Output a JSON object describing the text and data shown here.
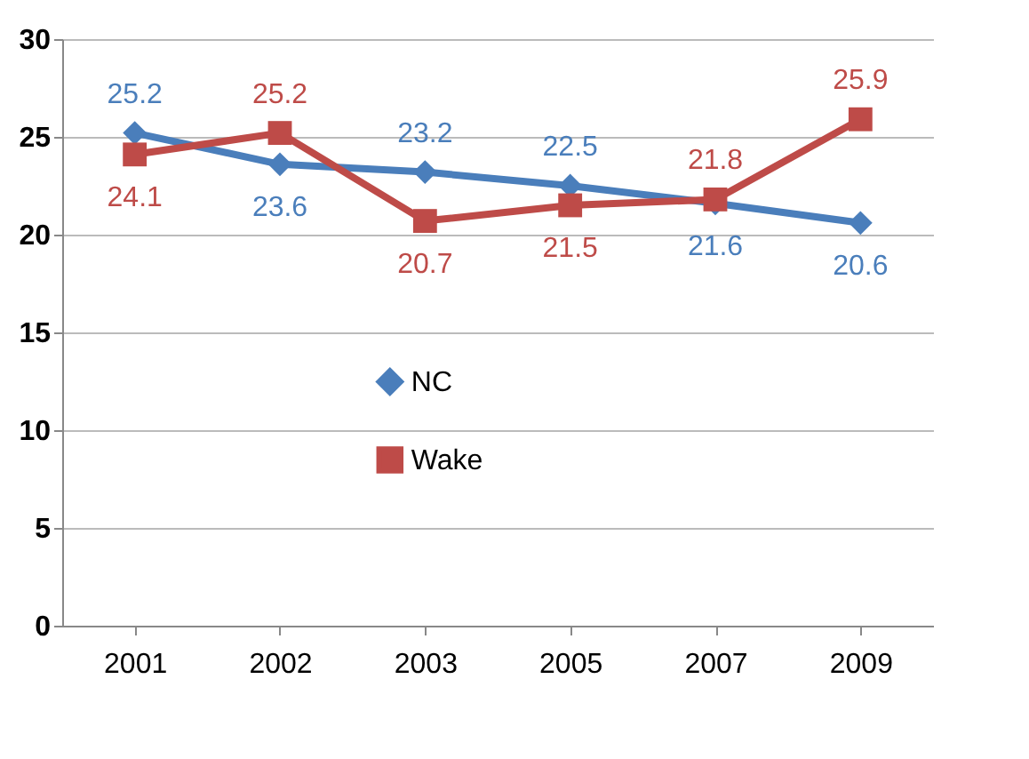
{
  "chart_data": {
    "type": "line",
    "categories": [
      "2001",
      "2002",
      "2003",
      "2005",
      "2007",
      "2009"
    ],
    "series": [
      {
        "name": "NC",
        "color": "#4a7ebb",
        "marker": "diamond",
        "values": [
          25.2,
          23.6,
          23.2,
          22.5,
          21.6,
          20.6
        ]
      },
      {
        "name": "Wake",
        "color": "#be4b48",
        "marker": "square",
        "values": [
          24.1,
          25.2,
          20.7,
          21.5,
          21.8,
          25.9
        ]
      }
    ],
    "ylim": [
      0,
      30
    ],
    "yticks": [
      0,
      5,
      10,
      15,
      20,
      25,
      30
    ],
    "grid": "y",
    "legend": "center",
    "data_labels": true
  }
}
